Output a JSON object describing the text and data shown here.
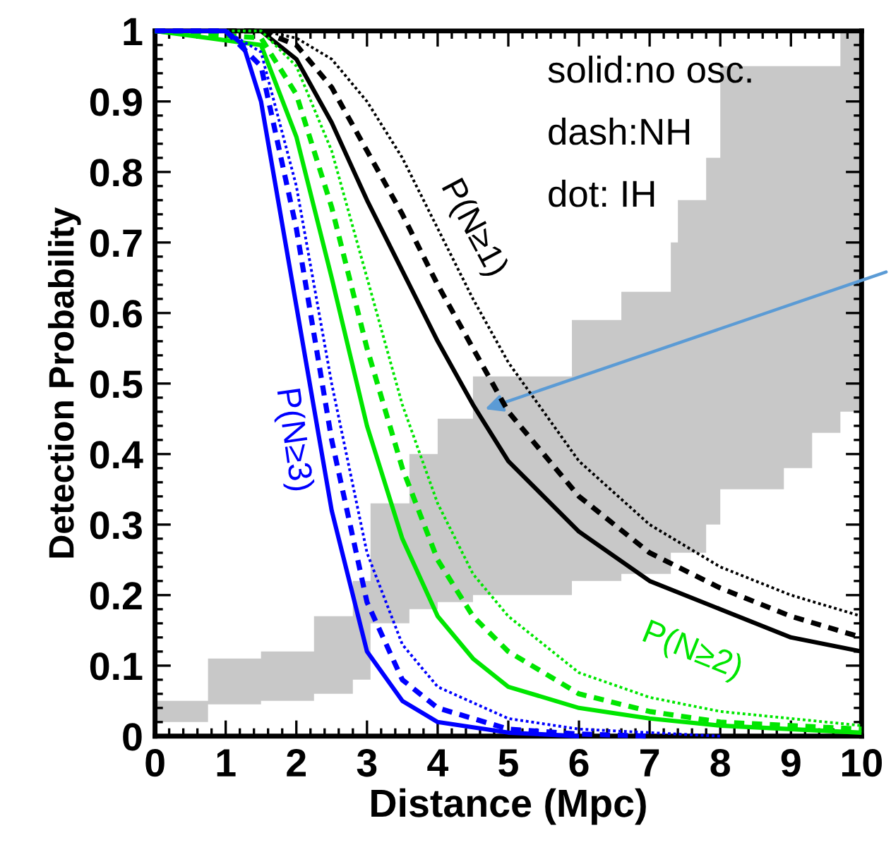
{
  "chart_data": {
    "type": "line",
    "xlabel": "Distance (Mpc)",
    "ylabel": "Detection Probability",
    "xlim": [
      0,
      10
    ],
    "ylim": [
      0,
      1
    ],
    "xticks": [
      0,
      1,
      2,
      3,
      4,
      5,
      6,
      7,
      8,
      9,
      10
    ],
    "yticks": [
      0,
      0.1,
      0.2,
      0.3,
      0.4,
      0.5,
      0.6,
      0.7,
      0.8,
      0.9,
      1
    ],
    "grid": false,
    "legend": false,
    "marker": "none",
    "annotations": [
      "solid:no osc.",
      "dash:NH",
      "dot: IH",
      "P(N≥1)",
      "P(N≥2)",
      "P(N≥3)"
    ],
    "series": [
      {
        "type": "area",
        "color": "#c8c8c8",
        "x": [
          0,
          0.75,
          0.75,
          1.5,
          1.5,
          2.25,
          2.25,
          2.8,
          2.8,
          3.05,
          3.05,
          3.6,
          3.6,
          4.0,
          4.0,
          4.5,
          4.5,
          5.9,
          5.9,
          6.6,
          6.6,
          7.3,
          7.3,
          7.4,
          7.4,
          7.8,
          7.8,
          8.0,
          8.0,
          8.9,
          8.9,
          9.3,
          9.3,
          9.7,
          9.7,
          10
        ],
        "values": [
          0.05,
          0.05,
          0.11,
          0.11,
          0.12,
          0.12,
          0.17,
          0.17,
          0.22,
          0.22,
          0.33,
          0.33,
          0.4,
          0.4,
          0.45,
          0.45,
          0.51,
          0.51,
          0.59,
          0.59,
          0.63,
          0.63,
          0.7,
          0.7,
          0.76,
          0.76,
          0.82,
          0.82,
          0.95,
          0.95,
          0.95,
          0.95,
          0.95,
          0.95,
          1.0,
          1.0
        ]
      },
      {
        "type": "area",
        "color": "#ffffff",
        "x": [
          0,
          0.75,
          0.75,
          1.5,
          1.5,
          2.25,
          2.25,
          2.8,
          2.8,
          3.05,
          3.05,
          3.6,
          3.6,
          4.0,
          4.0,
          4.5,
          4.5,
          5.9,
          5.9,
          6.6,
          6.6,
          7.3,
          7.3,
          7.4,
          7.4,
          7.8,
          7.8,
          8.0,
          8.0,
          8.9,
          8.9,
          9.3,
          9.3,
          9.7,
          9.7,
          10
        ],
        "values": [
          0.02,
          0.02,
          0.045,
          0.045,
          0.05,
          0.05,
          0.06,
          0.06,
          0.08,
          0.08,
          0.16,
          0.16,
          0.18,
          0.18,
          0.19,
          0.19,
          0.2,
          0.2,
          0.22,
          0.22,
          0.23,
          0.23,
          0.26,
          0.26,
          0.26,
          0.26,
          0.3,
          0.3,
          0.35,
          0.35,
          0.38,
          0.38,
          0.43,
          0.43,
          0.46,
          0.46
        ]
      },
      {
        "color": "#000000",
        "line_style": "dotted",
        "x": [
          0,
          1.5,
          2,
          2.5,
          3,
          3.5,
          4,
          4.5,
          5,
          6,
          7,
          8,
          9,
          10
        ],
        "values": [
          1,
          1,
          0.99,
          0.96,
          0.9,
          0.82,
          0.72,
          0.62,
          0.53,
          0.39,
          0.3,
          0.24,
          0.2,
          0.17
        ]
      },
      {
        "color": "#000000",
        "line_style": "dashed",
        "x": [
          0,
          1.5,
          2,
          2.5,
          3,
          3.5,
          4,
          4.5,
          5,
          6,
          7,
          8,
          9,
          10
        ],
        "values": [
          1,
          1,
          0.98,
          0.92,
          0.83,
          0.74,
          0.64,
          0.55,
          0.46,
          0.34,
          0.26,
          0.21,
          0.17,
          0.14
        ]
      },
      {
        "color": "#000000",
        "line_style": "solid",
        "x": [
          0,
          1.5,
          2,
          2.5,
          3,
          3.5,
          4,
          4.5,
          5,
          6,
          7,
          8,
          9,
          10
        ],
        "values": [
          1,
          1,
          0.96,
          0.87,
          0.76,
          0.66,
          0.56,
          0.47,
          0.39,
          0.29,
          0.22,
          0.18,
          0.14,
          0.12
        ]
      },
      {
        "color": "#00e600",
        "line_style": "dotted",
        "x": [
          0,
          1.5,
          2,
          2.5,
          3,
          3.5,
          4,
          4.5,
          5,
          6,
          7,
          8,
          9,
          10
        ],
        "values": [
          1,
          1,
          0.95,
          0.83,
          0.65,
          0.47,
          0.33,
          0.23,
          0.17,
          0.09,
          0.055,
          0.035,
          0.025,
          0.015
        ]
      },
      {
        "color": "#00e600",
        "line_style": "dashed",
        "x": [
          0,
          1.5,
          2,
          2.5,
          3,
          3.5,
          4,
          4.5,
          5,
          6,
          7,
          8,
          9,
          10
        ],
        "values": [
          1,
          0.99,
          0.91,
          0.75,
          0.55,
          0.38,
          0.25,
          0.17,
          0.12,
          0.06,
          0.035,
          0.02,
          0.015,
          0.01
        ]
      },
      {
        "color": "#00e600",
        "line_style": "solid",
        "x": [
          0,
          1.5,
          2,
          2.5,
          3,
          3.5,
          4,
          4.5,
          5,
          6,
          7,
          8,
          9,
          10
        ],
        "values": [
          1,
          0.98,
          0.85,
          0.65,
          0.44,
          0.28,
          0.17,
          0.11,
          0.07,
          0.04,
          0.025,
          0.015,
          0.01,
          0.005
        ]
      },
      {
        "color": "#0000ff",
        "line_style": "dotted",
        "x": [
          0,
          1,
          1.5,
          2,
          2.5,
          3,
          3.5,
          4,
          5,
          6,
          7,
          8
        ],
        "values": [
          1,
          1,
          0.97,
          0.78,
          0.5,
          0.26,
          0.13,
          0.07,
          0.025,
          0.01,
          0.005,
          0
        ]
      },
      {
        "color": "#0000ff",
        "line_style": "dashed",
        "x": [
          0,
          1,
          1.5,
          2,
          2.5,
          3,
          3.5,
          4,
          5,
          6,
          7
        ],
        "values": [
          1,
          1,
          0.95,
          0.72,
          0.42,
          0.19,
          0.08,
          0.04,
          0.01,
          0.003,
          0
        ]
      },
      {
        "color": "#0000ff",
        "line_style": "solid",
        "x": [
          0,
          1,
          1.25,
          1.5,
          2,
          2.5,
          3,
          3.5,
          4,
          5,
          6
        ],
        "values": [
          1,
          1,
          0.98,
          0.9,
          0.61,
          0.32,
          0.12,
          0.05,
          0.02,
          0.005,
          0
        ]
      }
    ]
  }
}
